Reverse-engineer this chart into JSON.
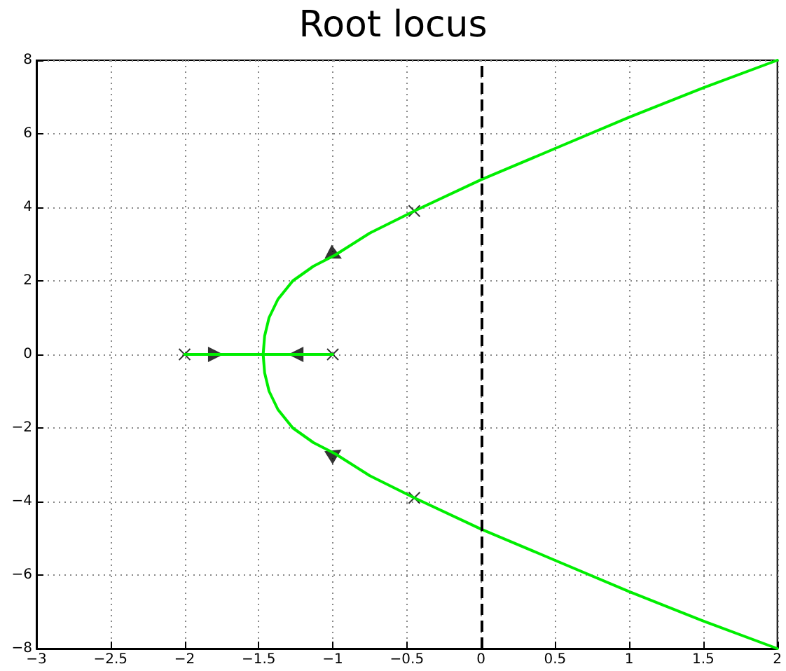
{
  "chart_data": {
    "type": "line",
    "title": "Root locus",
    "xlim": [
      -3,
      2
    ],
    "xticks": [
      -3,
      -2.5,
      -2,
      -1.5,
      -1,
      -0.5,
      0,
      0.5,
      1,
      1.5,
      2
    ],
    "ylim": [
      -8,
      8
    ],
    "yticks": [
      -8,
      -6,
      -4,
      -2,
      0,
      2,
      4,
      6,
      8
    ],
    "grid": true,
    "line_style": "solid",
    "ref_lines": [
      {
        "axis": "x",
        "value": 0,
        "color": "#000000",
        "line_style": "dashed"
      }
    ],
    "series": [
      {
        "color": "#00ee00",
        "x": [
          -2,
          -1.47,
          -1
        ],
        "values": [
          0,
          0,
          0
        ]
      },
      {
        "color": "#00ee00",
        "x": [
          2,
          1.5,
          1,
          0.5,
          0,
          -0.45,
          -0.75,
          -0.985,
          -1.13,
          -1.27,
          -1.37,
          -1.43,
          -1.46,
          -1.47,
          -1.46,
          -1.43,
          -1.37,
          -1.27,
          -1.13,
          -0.985,
          -0.75,
          -0.45,
          0,
          0.5,
          1,
          1.5,
          2
        ],
        "values": [
          -8,
          -7.25,
          -6.45,
          -5.6,
          -4.75,
          -3.9,
          -3.3,
          -2.7,
          -2.4,
          -2,
          -1.5,
          -1,
          -0.5,
          0,
          0.5,
          1,
          1.5,
          2,
          2.4,
          2.7,
          3.3,
          3.9,
          4.75,
          5.6,
          6.45,
          7.25,
          8
        ]
      },
      {
        "type": "scatter",
        "color": "#000000",
        "marker": "cross",
        "x": [
          -2,
          -1
        ],
        "values": [
          0,
          0
        ]
      },
      {
        "type": "scatter",
        "color": "#000000",
        "marker": "cross",
        "x": [
          -0.45,
          -0.45
        ],
        "values": [
          3.9,
          -3.9
        ]
      },
      {
        "type": "scatter",
        "color": "#000000",
        "marker": "triangle",
        "x": [
          -1.79,
          -1.25,
          -0.985,
          -0.985
        ],
        "values": [
          0,
          0,
          2.7,
          -2.7
        ]
      }
    ]
  }
}
